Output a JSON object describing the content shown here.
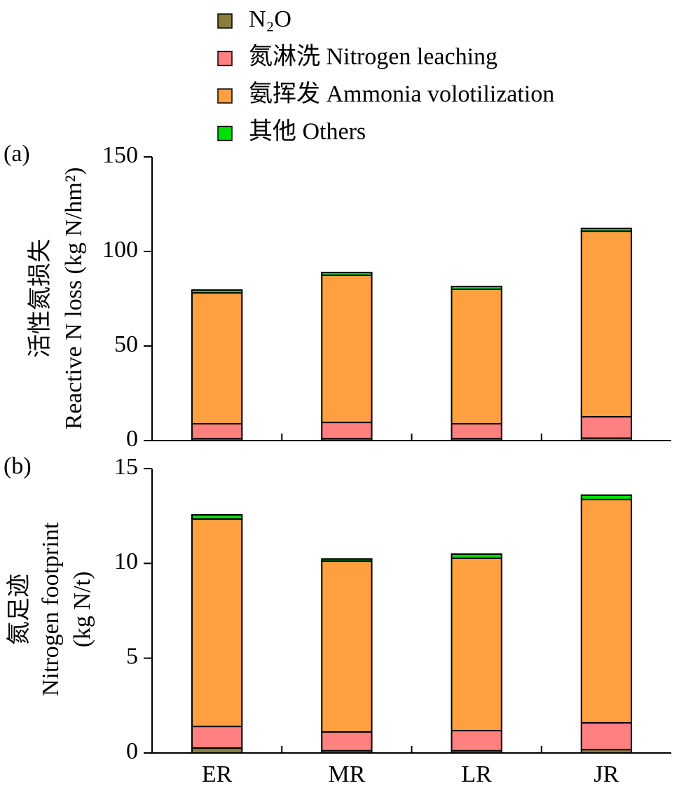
{
  "chart_data": [
    {
      "type": "bar",
      "stacked": true,
      "panel_label": "(a)",
      "ylabel": [
        "活性氮损失",
        "Reactive N loss (kg N/hm²)"
      ],
      "categories": [
        null,
        null,
        null,
        null
      ],
      "ylim": [
        0,
        150
      ],
      "yticks": [
        0,
        50,
        100,
        150
      ],
      "series": [
        {
          "name": "N₂O",
          "color": "#8b7d3a",
          "values": [
            1.0,
            1.0,
            1.0,
            1.3
          ]
        },
        {
          "name": "氮淋洗 Nitrogen leaching",
          "color": "#ff8080",
          "values": [
            7.9,
            8.6,
            7.9,
            11.3
          ]
        },
        {
          "name": "氨挥发 Ammonia volotilization",
          "color": "#ffa040",
          "values": [
            69.2,
            77.8,
            71.1,
            98.1
          ]
        },
        {
          "name": "其他 Others",
          "color": "#00e000",
          "values": [
            1.5,
            1.5,
            1.5,
            1.5
          ]
        }
      ]
    },
    {
      "type": "bar",
      "stacked": true,
      "panel_label": "(b)",
      "ylabel": [
        "氮足迹",
        "Nitrogen footprint",
        "(kg N/t)"
      ],
      "categories": [
        "ER",
        "MR",
        "LR",
        "JR"
      ],
      "ylim": [
        0,
        15
      ],
      "yticks": [
        0,
        5,
        10,
        15
      ],
      "series": [
        {
          "name": "N₂O",
          "color": "#8b7d3a",
          "values": [
            0.26,
            0.12,
            0.12,
            0.18
          ]
        },
        {
          "name": "氮淋洗 Nitrogen leaching",
          "color": "#ff8080",
          "values": [
            1.14,
            0.99,
            1.06,
            1.41
          ]
        },
        {
          "name": "氨挥发 Ammonia volotilization",
          "color": "#ffa040",
          "values": [
            10.94,
            9.01,
            9.09,
            11.78
          ]
        },
        {
          "name": "其他 Others",
          "color": "#00e000",
          "values": [
            0.22,
            0.11,
            0.22,
            0.23
          ]
        }
      ]
    }
  ]
}
